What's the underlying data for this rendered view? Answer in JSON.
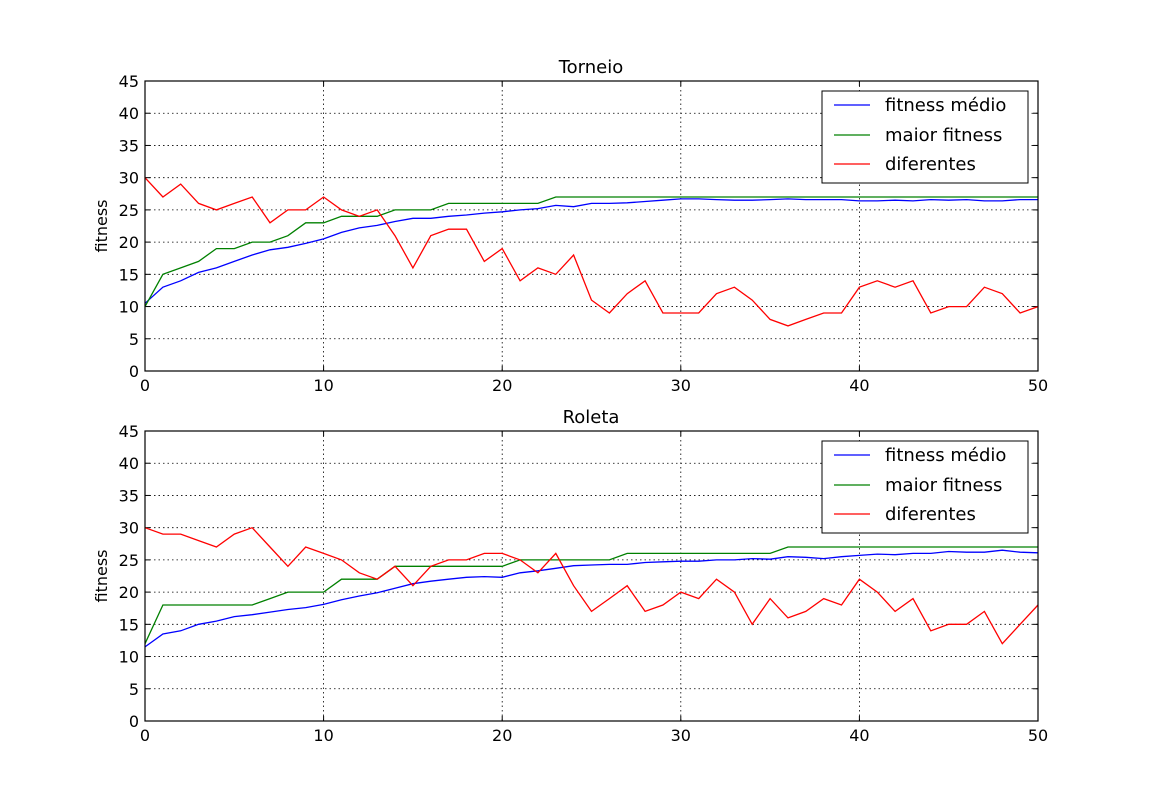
{
  "chart_data": [
    {
      "type": "line",
      "title": "Torneio",
      "xlabel": "",
      "ylabel": "fitness",
      "xlim": [
        0,
        50
      ],
      "ylim": [
        0,
        45
      ],
      "xticks": [
        0,
        10,
        20,
        30,
        40,
        50
      ],
      "yticks": [
        0,
        5,
        10,
        15,
        20,
        25,
        30,
        35,
        40,
        45
      ],
      "grid": true,
      "legend_position": "top-right",
      "x": [
        0,
        1,
        2,
        3,
        4,
        5,
        6,
        7,
        8,
        9,
        10,
        11,
        12,
        13,
        14,
        15,
        16,
        17,
        18,
        19,
        20,
        21,
        22,
        23,
        24,
        25,
        26,
        27,
        28,
        29,
        30,
        31,
        32,
        33,
        34,
        35,
        36,
        37,
        38,
        39,
        40,
        41,
        42,
        43,
        44,
        45,
        46,
        47,
        48,
        49,
        50
      ],
      "series": [
        {
          "name": "fitness médio",
          "color": "#0000ff",
          "values": [
            10.5,
            13.0,
            14.0,
            15.3,
            16.0,
            17.0,
            18.0,
            18.8,
            19.2,
            19.8,
            20.5,
            21.5,
            22.2,
            22.6,
            23.2,
            23.7,
            23.7,
            24.0,
            24.2,
            24.5,
            24.7,
            25.0,
            25.2,
            25.7,
            25.5,
            26.0,
            26.0,
            26.1,
            26.3,
            26.5,
            26.7,
            26.7,
            26.6,
            26.5,
            26.5,
            26.6,
            26.7,
            26.6,
            26.6,
            26.6,
            26.4,
            26.4,
            26.5,
            26.4,
            26.6,
            26.5,
            26.6,
            26.4,
            26.4,
            26.6,
            26.6
          ]
        },
        {
          "name": "maior fitness",
          "color": "#008000",
          "values": [
            10,
            15,
            16,
            17,
            19,
            19,
            20,
            20,
            21,
            23,
            23,
            24,
            24,
            24,
            25,
            25,
            25,
            26,
            26,
            26,
            26,
            26,
            26,
            27,
            27,
            27,
            27,
            27,
            27,
            27,
            27,
            27,
            27,
            27,
            27,
            27,
            27,
            27,
            27,
            27,
            27,
            27,
            27,
            27,
            27,
            27,
            27,
            27,
            27,
            27,
            27
          ]
        },
        {
          "name": "diferentes",
          "color": "#ff0000",
          "values": [
            30,
            27,
            29,
            26,
            25,
            26,
            27,
            23,
            25,
            25,
            27,
            25,
            24,
            25,
            21,
            16,
            21,
            22,
            22,
            17,
            19,
            14,
            16,
            15,
            18,
            11,
            9,
            12,
            14,
            9,
            9,
            9,
            12,
            13,
            11,
            8,
            7,
            8,
            9,
            9,
            13,
            14,
            13,
            14,
            9,
            10,
            10,
            13,
            12,
            9,
            10
          ]
        }
      ]
    },
    {
      "type": "line",
      "title": "Roleta",
      "xlabel": "",
      "ylabel": "fitness",
      "xlim": [
        0,
        50
      ],
      "ylim": [
        0,
        45
      ],
      "xticks": [
        0,
        10,
        20,
        30,
        40,
        50
      ],
      "yticks": [
        0,
        5,
        10,
        15,
        20,
        25,
        30,
        35,
        40,
        45
      ],
      "grid": true,
      "legend_position": "top-right",
      "x": [
        0,
        1,
        2,
        3,
        4,
        5,
        6,
        7,
        8,
        9,
        10,
        11,
        12,
        13,
        14,
        15,
        16,
        17,
        18,
        19,
        20,
        21,
        22,
        23,
        24,
        25,
        26,
        27,
        28,
        29,
        30,
        31,
        32,
        33,
        34,
        35,
        36,
        37,
        38,
        39,
        40,
        41,
        42,
        43,
        44,
        45,
        46,
        47,
        48,
        49,
        50
      ],
      "series": [
        {
          "name": "fitness médio",
          "color": "#0000ff",
          "values": [
            11.5,
            13.5,
            14.0,
            15.0,
            15.5,
            16.2,
            16.5,
            16.9,
            17.3,
            17.6,
            18.1,
            18.8,
            19.4,
            19.9,
            20.6,
            21.3,
            21.7,
            22.0,
            22.3,
            22.4,
            22.3,
            23.0,
            23.3,
            23.7,
            24.1,
            24.2,
            24.3,
            24.3,
            24.6,
            24.7,
            24.8,
            24.8,
            25.0,
            25.0,
            25.2,
            25.1,
            25.5,
            25.4,
            25.2,
            25.5,
            25.7,
            25.9,
            25.8,
            26.0,
            26.0,
            26.3,
            26.2,
            26.2,
            26.5,
            26.2,
            26.1
          ]
        },
        {
          "name": "maior fitness",
          "color": "#008000",
          "values": [
            12,
            18,
            18,
            18,
            18,
            18,
            18,
            19,
            20,
            20,
            20,
            22,
            22,
            22,
            24,
            24,
            24,
            24,
            24,
            24,
            24,
            25,
            25,
            25,
            25,
            25,
            25,
            26,
            26,
            26,
            26,
            26,
            26,
            26,
            26,
            26,
            27,
            27,
            27,
            27,
            27,
            27,
            27,
            27,
            27,
            27,
            27,
            27,
            27,
            27,
            27
          ]
        },
        {
          "name": "diferentes",
          "color": "#ff0000",
          "values": [
            30,
            29,
            29,
            28,
            27,
            29,
            30,
            27,
            24,
            27,
            26,
            25,
            23,
            22,
            24,
            21,
            24,
            25,
            25,
            26,
            26,
            25,
            23,
            26,
            21,
            17,
            19,
            21,
            17,
            18,
            20,
            19,
            22,
            20,
            15,
            19,
            16,
            17,
            19,
            18,
            22,
            20,
            17,
            19,
            14,
            15,
            15,
            17,
            12,
            15,
            18
          ]
        }
      ]
    }
  ]
}
